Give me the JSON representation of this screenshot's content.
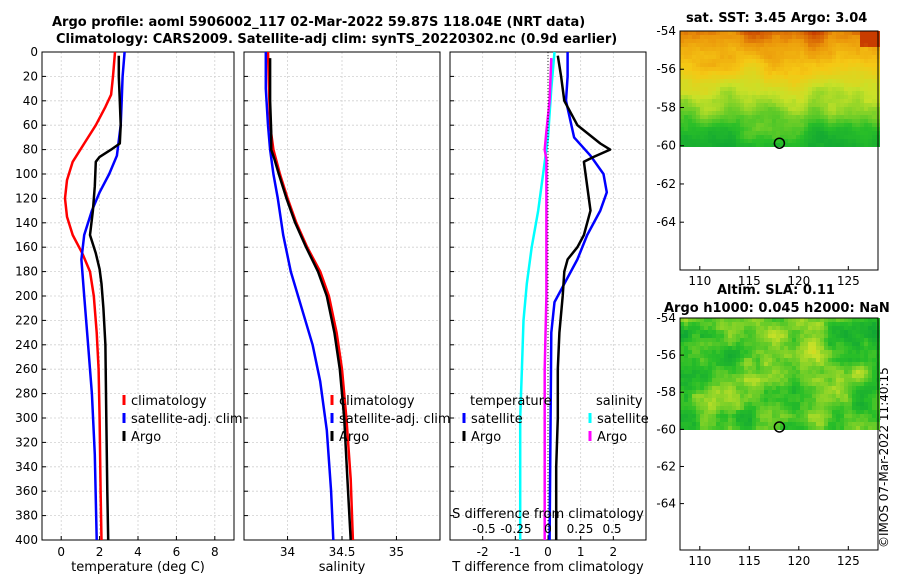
{
  "header": {
    "title_line1": "Argo profile: aoml 5906002_117 02-Mar-2022 59.87S 118.04E (NRT data)",
    "title_line2": "Climatology: CARS2009. Satellite-adj clim: synTS_20220302.nc (0.9d earlier)"
  },
  "credit": "©IMOS 07-Mar-2022 11:40:15",
  "colors": {
    "climatology": "#ff0000",
    "satellite": "#0000ff",
    "argo": "#000000",
    "cyan": "#00ffff",
    "magenta": "#ff00ff"
  },
  "chart_data": [
    {
      "type": "line",
      "id": "temperature",
      "xlabel": "temperature (deg C)",
      "ylabel": "",
      "xlim": [
        -1,
        9
      ],
      "ylim": [
        400,
        0
      ],
      "xticks": [
        "0",
        "2",
        "4",
        "6",
        "8"
      ],
      "yticks": [
        "0",
        "20",
        "40",
        "60",
        "80",
        "100",
        "120",
        "140",
        "160",
        "180",
        "200",
        "220",
        "240",
        "260",
        "280",
        "300",
        "320",
        "340",
        "360",
        "380",
        "400"
      ],
      "legend": [
        "climatology",
        "satellite-adj. clim",
        "Argo"
      ],
      "legend_position": "right",
      "series": [
        {
          "name": "climatology",
          "color": "#ff0000",
          "points": [
            [
              2.8,
              0
            ],
            [
              2.7,
              20
            ],
            [
              2.6,
              35
            ],
            [
              2.3,
              45
            ],
            [
              1.8,
              60
            ],
            [
              1.2,
              75
            ],
            [
              0.6,
              90
            ],
            [
              0.3,
              105
            ],
            [
              0.2,
              120
            ],
            [
              0.3,
              135
            ],
            [
              0.6,
              150
            ],
            [
              1.1,
              165
            ],
            [
              1.5,
              180
            ],
            [
              1.7,
              200
            ],
            [
              1.85,
              230
            ],
            [
              1.95,
              260
            ],
            [
              2.0,
              300
            ],
            [
              2.05,
              360
            ],
            [
              2.1,
              400
            ]
          ]
        },
        {
          "name": "satellite-adj. clim",
          "color": "#0000ff",
          "points": [
            [
              3.3,
              0
            ],
            [
              3.2,
              20
            ],
            [
              3.15,
              40
            ],
            [
              3.1,
              60
            ],
            [
              2.9,
              85
            ],
            [
              2.5,
              100
            ],
            [
              2.0,
              115
            ],
            [
              1.6,
              130
            ],
            [
              1.2,
              150
            ],
            [
              1.05,
              170
            ],
            [
              1.2,
              200
            ],
            [
              1.4,
              240
            ],
            [
              1.6,
              280
            ],
            [
              1.75,
              330
            ],
            [
              1.85,
              400
            ]
          ]
        },
        {
          "name": "Argo",
          "color": "#000000",
          "points": [
            [
              3.0,
              3
            ],
            [
              3.0,
              20
            ],
            [
              3.05,
              40
            ],
            [
              3.1,
              60
            ],
            [
              3.05,
              75
            ],
            [
              2.6,
              80
            ],
            [
              2.0,
              86
            ],
            [
              1.8,
              90
            ],
            [
              1.75,
              110
            ],
            [
              1.65,
              130
            ],
            [
              1.5,
              150
            ],
            [
              1.8,
              165
            ],
            [
              2.0,
              178
            ],
            [
              2.1,
              190
            ],
            [
              2.2,
              210
            ],
            [
              2.3,
              240
            ],
            [
              2.35,
              300
            ],
            [
              2.4,
              360
            ],
            [
              2.45,
              400
            ]
          ]
        }
      ]
    },
    {
      "type": "line",
      "id": "salinity",
      "xlabel": "salinity",
      "ylabel": "",
      "xlim": [
        33.6,
        35.4
      ],
      "ylim": [
        400,
        0
      ],
      "xticks": [
        "34",
        "34.5",
        "35"
      ],
      "legend": [
        "climatology",
        "satellite-adj. clim",
        "Argo"
      ],
      "legend_position": "right",
      "series": [
        {
          "name": "climatology",
          "color": "#ff0000",
          "points": [
            [
              33.82,
              0
            ],
            [
              33.83,
              30
            ],
            [
              33.84,
              60
            ],
            [
              33.87,
              80
            ],
            [
              33.93,
              100
            ],
            [
              34.0,
              120
            ],
            [
              34.08,
              140
            ],
            [
              34.18,
              160
            ],
            [
              34.3,
              180
            ],
            [
              34.38,
              200
            ],
            [
              34.45,
              230
            ],
            [
              34.5,
              260
            ],
            [
              34.54,
              300
            ],
            [
              34.58,
              350
            ],
            [
              34.6,
              400
            ]
          ]
        },
        {
          "name": "satellite-adj. clim",
          "color": "#0000ff",
          "points": [
            [
              33.8,
              0
            ],
            [
              33.8,
              30
            ],
            [
              33.82,
              60
            ],
            [
              33.84,
              80
            ],
            [
              33.87,
              100
            ],
            [
              33.91,
              120
            ],
            [
              33.96,
              150
            ],
            [
              34.03,
              180
            ],
            [
              34.13,
              210
            ],
            [
              34.23,
              240
            ],
            [
              34.3,
              270
            ],
            [
              34.36,
              310
            ],
            [
              34.4,
              360
            ],
            [
              34.42,
              400
            ]
          ]
        },
        {
          "name": "Argo",
          "color": "#000000",
          "points": [
            [
              33.84,
              5
            ],
            [
              33.84,
              40
            ],
            [
              33.85,
              65
            ],
            [
              33.85,
              80
            ],
            [
              33.88,
              88
            ],
            [
              33.92,
              100
            ],
            [
              33.99,
              120
            ],
            [
              34.07,
              140
            ],
            [
              34.17,
              160
            ],
            [
              34.28,
              180
            ],
            [
              34.36,
              200
            ],
            [
              34.43,
              230
            ],
            [
              34.48,
              260
            ],
            [
              34.52,
              300
            ],
            [
              34.55,
              350
            ],
            [
              34.58,
              400
            ]
          ]
        }
      ]
    },
    {
      "type": "line",
      "id": "difference",
      "xlabel": "T difference from climatology",
      "top_label": "S difference from climatology",
      "xlim": [
        -3,
        3
      ],
      "ylim": [
        400,
        0
      ],
      "xticks": [
        "-2",
        "-1",
        "0",
        "1",
        "2"
      ],
      "top_ticks": [
        "-0.5",
        "-0.25",
        "0",
        "0.25",
        "0.5"
      ],
      "legend_left_title": "temperature",
      "legend_left": [
        "satellite",
        "Argo"
      ],
      "legend_right_title": "salinity",
      "legend_right": [
        "satellite",
        "Argo"
      ],
      "series": [
        {
          "name": "temperature satellite",
          "color": "#0000ff",
          "points": [
            [
              0.6,
              0
            ],
            [
              0.6,
              20
            ],
            [
              0.55,
              40
            ],
            [
              0.8,
              70
            ],
            [
              1.3,
              85
            ],
            [
              1.7,
              100
            ],
            [
              1.8,
              115
            ],
            [
              1.6,
              130
            ],
            [
              1.2,
              150
            ],
            [
              0.9,
              170
            ],
            [
              0.5,
              190
            ],
            [
              0.2,
              205
            ],
            [
              0.1,
              230
            ],
            [
              0.05,
              400
            ]
          ]
        },
        {
          "name": "temperature Argo",
          "color": "#000000",
          "points": [
            [
              0.3,
              3
            ],
            [
              0.4,
              20
            ],
            [
              0.5,
              40
            ],
            [
              0.9,
              60
            ],
            [
              1.6,
              75
            ],
            [
              1.9,
              80
            ],
            [
              1.4,
              86
            ],
            [
              1.1,
              90
            ],
            [
              1.2,
              110
            ],
            [
              1.3,
              130
            ],
            [
              1.1,
              150
            ],
            [
              0.9,
              160
            ],
            [
              0.6,
              170
            ],
            [
              0.5,
              180
            ],
            [
              0.45,
              200
            ],
            [
              0.35,
              230
            ],
            [
              0.3,
              260
            ],
            [
              0.3,
              300
            ],
            [
              0.25,
              340
            ],
            [
              0.25,
              400
            ]
          ]
        },
        {
          "name": "salinity satellite",
          "color": "#00ffff",
          "points": [
            [
              0.2,
              0
            ],
            [
              0.1,
              30
            ],
            [
              0.0,
              70
            ],
            [
              -0.15,
              100
            ],
            [
              -0.3,
              130
            ],
            [
              -0.5,
              160
            ],
            [
              -0.65,
              190
            ],
            [
              -0.75,
              220
            ],
            [
              -0.8,
              260
            ],
            [
              -0.85,
              300
            ],
            [
              -0.85,
              360
            ],
            [
              -0.85,
              400
            ]
          ]
        },
        {
          "name": "salinity Argo",
          "color": "#ff00ff",
          "points": [
            [
              0.1,
              5
            ],
            [
              0.05,
              40
            ],
            [
              -0.05,
              65
            ],
            [
              -0.1,
              80
            ],
            [
              -0.05,
              88
            ],
            [
              -0.05,
              120
            ],
            [
              -0.05,
              160
            ],
            [
              -0.05,
              200
            ],
            [
              -0.1,
              260
            ],
            [
              -0.1,
              320
            ],
            [
              -0.1,
              400
            ]
          ]
        }
      ]
    },
    {
      "type": "heatmap",
      "id": "sst_map",
      "title": "sat. SST: 3.45 Argo: 3.04",
      "xticks": [
        "110",
        "115",
        "120",
        "125"
      ],
      "yticks": [
        "-54",
        "-56",
        "-58",
        "-60",
        "-62",
        "-64"
      ],
      "xlim": [
        108,
        128
      ],
      "ylim": [
        -66.5,
        -54
      ],
      "marker": [
        118.04,
        -59.87
      ]
    },
    {
      "type": "heatmap",
      "id": "sla_map",
      "title_line1": "Altim. SLA: 0.11",
      "title_line2": "Argo h1000: 0.045 h2000: NaN",
      "xticks": [
        "110",
        "115",
        "120",
        "125"
      ],
      "yticks": [
        "-54",
        "-56",
        "-58",
        "-60",
        "-62",
        "-64"
      ],
      "xlim": [
        108,
        128
      ],
      "ylim": [
        -66.5,
        -54
      ],
      "marker": [
        118.04,
        -59.87
      ]
    }
  ]
}
